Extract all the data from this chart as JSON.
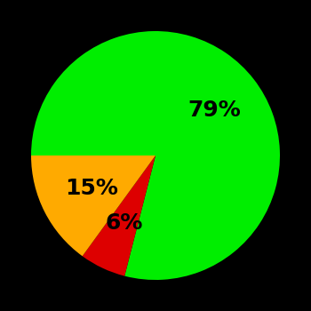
{
  "slices": [
    79,
    6,
    15
  ],
  "colors": [
    "#00ee00",
    "#dd0000",
    "#ffaa00"
  ],
  "labels": [
    "79%",
    "6%",
    "15%"
  ],
  "label_radii": [
    0.6,
    0.6,
    0.58
  ],
  "background_color": "#000000",
  "startangle": 180,
  "counterclock": false,
  "text_color": "#000000",
  "text_fontsize": 18,
  "text_fontweight": "bold"
}
